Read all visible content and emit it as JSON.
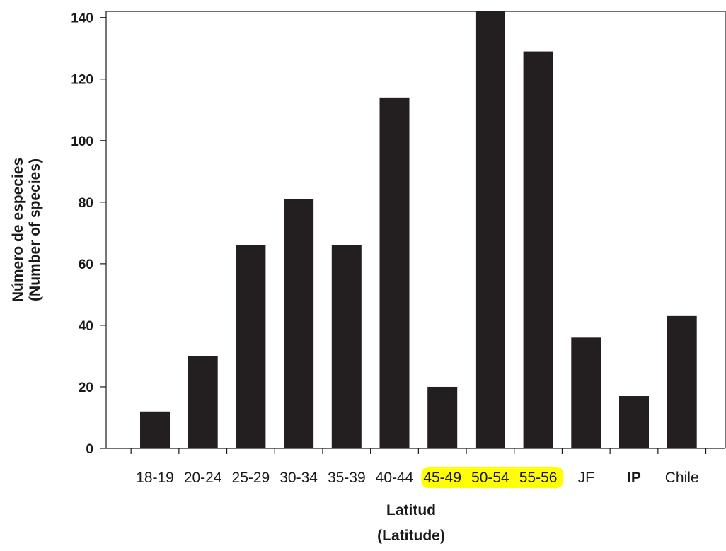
{
  "chart_data": {
    "type": "bar",
    "title": "",
    "categories": [
      "18-19",
      "20-24",
      "25-29",
      "30-34",
      "35-39",
      "40-44",
      "45-49",
      "50-54",
      "55-56",
      "JF",
      "IP",
      "Chile"
    ],
    "values": [
      12,
      30,
      66,
      81,
      66,
      114,
      20,
      142,
      129,
      36,
      17,
      43
    ],
    "xlabel_line1": "Latitud",
    "xlabel_line2": "(Latitude)",
    "ylabel_line1": "Número de especies",
    "ylabel_line2": "(Number of species)",
    "ylim": [
      0,
      142
    ],
    "yticks": [
      0,
      20,
      40,
      60,
      80,
      100,
      120,
      140
    ],
    "grid": false,
    "legend": "none",
    "bar_color": "#231f20",
    "highlighted_categories": [
      "45-49",
      "50-54",
      "55-56"
    ],
    "highlight_color": "#ffff00",
    "bold_categories": [
      "IP"
    ]
  }
}
